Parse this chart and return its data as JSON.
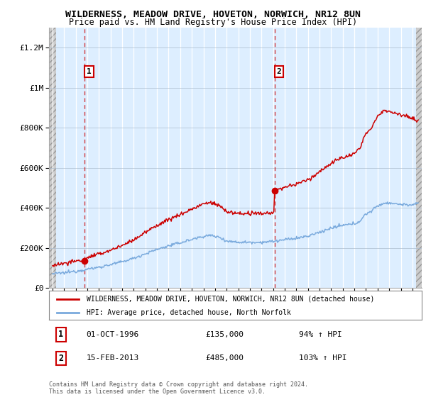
{
  "title1": "WILDERNESS, MEADOW DRIVE, HOVETON, NORWICH, NR12 8UN",
  "title2": "Price paid vs. HM Land Registry's House Price Index (HPI)",
  "ylabel_ticks": [
    "£0",
    "£200K",
    "£400K",
    "£600K",
    "£800K",
    "£1M",
    "£1.2M"
  ],
  "ytick_values": [
    0,
    200000,
    400000,
    600000,
    800000,
    1000000,
    1200000
  ],
  "ylim": [
    0,
    1300000
  ],
  "xlim_start": 1993.7,
  "xlim_end": 2025.8,
  "xticks": [
    1994,
    1995,
    1996,
    1997,
    1998,
    1999,
    2000,
    2001,
    2002,
    2003,
    2004,
    2005,
    2006,
    2007,
    2008,
    2009,
    2010,
    2011,
    2012,
    2013,
    2014,
    2015,
    2016,
    2017,
    2018,
    2019,
    2020,
    2021,
    2022,
    2023,
    2024,
    2025
  ],
  "sale1_x": 1996.75,
  "sale1_y": 135000,
  "sale2_x": 2013.12,
  "sale2_y": 485000,
  "hpi_color": "#7aaadd",
  "price_color": "#cc0000",
  "bg_plot": "#ddeeff",
  "legend_line1": "WILDERNESS, MEADOW DRIVE, HOVETON, NORWICH, NR12 8UN (detached house)",
  "legend_line2": "HPI: Average price, detached house, North Norfolk",
  "table_row1": [
    "1",
    "01-OCT-1996",
    "£135,000",
    "94% ↑ HPI"
  ],
  "table_row2": [
    "2",
    "15-FEB-2013",
    "£485,000",
    "103% ↑ HPI"
  ],
  "footer": "Contains HM Land Registry data © Crown copyright and database right 2024.\nThis data is licensed under the Open Government Licence v3.0."
}
